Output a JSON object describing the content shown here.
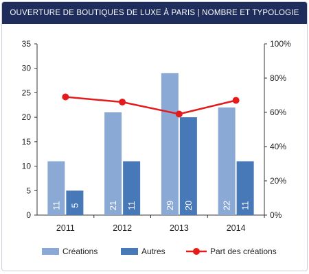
{
  "title": "OUVERTURE DE BOUTIQUES DE LUXE À PARIS | NOMBRE ET TYPOLOGIE",
  "colors": {
    "header_bg": "#1f2d5c",
    "creations": "#8aa9d4",
    "autres": "#4778b7",
    "line": "#e31b1b"
  },
  "chart_data": {
    "type": "bar",
    "categories": [
      "2011",
      "2012",
      "2013",
      "2014"
    ],
    "series": [
      {
        "name": "Créations",
        "values": [
          11,
          21,
          29,
          22
        ],
        "labels": [
          "11",
          "21",
          "29",
          "22"
        ]
      },
      {
        "name": "Autres",
        "values": [
          5,
          11,
          20,
          11
        ],
        "labels": [
          "5",
          "11",
          "20",
          "11"
        ]
      }
    ],
    "line_series": {
      "name": "Part des créations",
      "axis": "right",
      "values": [
        69,
        66,
        59,
        67
      ]
    },
    "ylim": [
      0,
      35
    ],
    "yticks": [
      0,
      5,
      10,
      15,
      20,
      25,
      30,
      35
    ],
    "y2lim": [
      0,
      100
    ],
    "y2ticks": [
      "0%",
      "20%",
      "40%",
      "60%",
      "80%",
      "100%"
    ],
    "grid": false,
    "legend": "bottom"
  }
}
